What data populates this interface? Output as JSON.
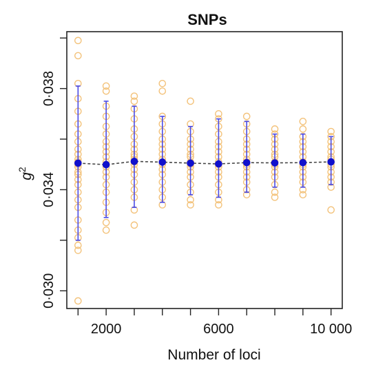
{
  "chart_data": {
    "type": "scatter",
    "title": "SNPs",
    "xlabel": "Number of loci",
    "ylabel": "g",
    "ylabel_superscript": "2",
    "xlim": [
      600,
      10400
    ],
    "ylim": [
      0.0293,
      0.04025
    ],
    "x_ticks": [
      1000,
      2000,
      3000,
      4000,
      5000,
      6000,
      7000,
      8000,
      9000,
      10000
    ],
    "x_tick_labels": [
      {
        "value": 2000,
        "label": "2000"
      },
      {
        "value": 6000,
        "label": "6000"
      },
      {
        "value": 10000,
        "label": "10 000"
      }
    ],
    "y_ticks": [
      {
        "value": 0.03,
        "label": "0·030"
      },
      {
        "value": 0.034,
        "label": "0·034"
      },
      {
        "value": 0.038,
        "label": "0·038"
      }
    ],
    "y_minor_ticks": [
      0.032,
      0.036,
      0.04
    ],
    "grid": false,
    "colors": {
      "points": "#f3c27a",
      "mean": "#1010cc",
      "error_bar": "#4a4ae6",
      "mean_line": "#444444",
      "frame": "#222222"
    },
    "series": [
      {
        "kind": "replicates",
        "points": [
          {
            "x": 1000,
            "y": [
              0.0399,
              0.0393,
              0.0382,
              0.0376,
              0.0371,
              0.0366,
              0.0362,
              0.0359,
              0.0356,
              0.0354,
              0.0352,
              0.0351,
              0.035,
              0.0349,
              0.0347,
              0.0346,
              0.0344,
              0.0342,
              0.0339,
              0.0336,
              0.0333,
              0.0328,
              0.0324,
              0.0321,
              0.0318,
              0.0316,
              0.0296
            ]
          },
          {
            "x": 2000,
            "y": [
              0.0381,
              0.0379,
              0.0373,
              0.0369,
              0.0365,
              0.0362,
              0.0359,
              0.0357,
              0.0355,
              0.0353,
              0.0351,
              0.035,
              0.0349,
              0.0347,
              0.0345,
              0.0342,
              0.0339,
              0.0335,
              0.0331,
              0.0327,
              0.0324
            ]
          },
          {
            "x": 3000,
            "y": [
              0.0377,
              0.0375,
              0.0372,
              0.0368,
              0.0364,
              0.0361,
              0.0358,
              0.0356,
              0.0354,
              0.0353,
              0.0352,
              0.0351,
              0.035,
              0.0348,
              0.0346,
              0.0343,
              0.034,
              0.0337,
              0.0332,
              0.0326
            ]
          },
          {
            "x": 4000,
            "y": [
              0.0382,
              0.0379,
              0.0369,
              0.0366,
              0.0363,
              0.036,
              0.0358,
              0.0356,
              0.0354,
              0.0352,
              0.0351,
              0.035,
              0.0348,
              0.0346,
              0.0343,
              0.034,
              0.0337,
              0.0334
            ]
          },
          {
            "x": 5000,
            "y": [
              0.0375,
              0.0366,
              0.0363,
              0.036,
              0.0358,
              0.0356,
              0.0354,
              0.0353,
              0.0351,
              0.035,
              0.0349,
              0.0347,
              0.0345,
              0.0342,
              0.0339,
              0.0336,
              0.0334
            ]
          },
          {
            "x": 6000,
            "y": [
              0.037,
              0.0368,
              0.0365,
              0.0362,
              0.0359,
              0.0357,
              0.0355,
              0.0353,
              0.0351,
              0.035,
              0.0349,
              0.0347,
              0.0345,
              0.0342,
              0.0339,
              0.0336,
              0.0334
            ]
          },
          {
            "x": 7000,
            "y": [
              0.0369,
              0.0366,
              0.0363,
              0.036,
              0.0358,
              0.0356,
              0.0354,
              0.0352,
              0.0351,
              0.035,
              0.0349,
              0.0347,
              0.0345,
              0.0343,
              0.034,
              0.0338
            ]
          },
          {
            "x": 8000,
            "y": [
              0.0364,
              0.0362,
              0.036,
              0.0358,
              0.0356,
              0.0354,
              0.0353,
              0.0351,
              0.035,
              0.0349,
              0.0347,
              0.0345,
              0.0342,
              0.0339,
              0.0337
            ]
          },
          {
            "x": 9000,
            "y": [
              0.0367,
              0.0364,
              0.0361,
              0.0359,
              0.0357,
              0.0355,
              0.0353,
              0.0351,
              0.035,
              0.0349,
              0.0347,
              0.0345,
              0.0343,
              0.034,
              0.0338
            ]
          },
          {
            "x": 10000,
            "y": [
              0.0363,
              0.0361,
              0.0359,
              0.0357,
              0.0355,
              0.0353,
              0.0352,
              0.0351,
              0.035,
              0.0349,
              0.0347,
              0.0345,
              0.0343,
              0.0341,
              0.0332
            ]
          }
        ]
      },
      {
        "kind": "mean",
        "x": [
          1000,
          2000,
          3000,
          4000,
          5000,
          6000,
          7000,
          8000,
          9000,
          10000
        ],
        "y": [
          0.03505,
          0.03499,
          0.03512,
          0.03509,
          0.03505,
          0.03502,
          0.03507,
          0.03506,
          0.03507,
          0.0351
        ],
        "lower": [
          0.032,
          0.0329,
          0.0333,
          0.0335,
          0.0338,
          0.0337,
          0.0339,
          0.0341,
          0.0341,
          0.0342
        ],
        "upper": [
          0.0381,
          0.0375,
          0.0373,
          0.0369,
          0.0365,
          0.0368,
          0.0367,
          0.0362,
          0.0362,
          0.0361
        ]
      }
    ]
  }
}
